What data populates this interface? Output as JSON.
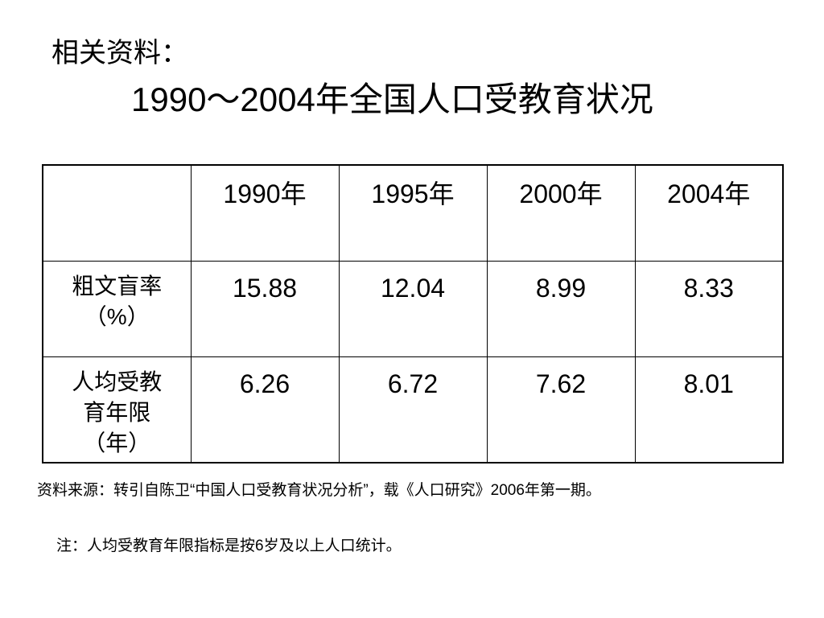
{
  "header": {
    "label": "相关资料：",
    "title": "1990～2004年全国人口受教育状况"
  },
  "table": {
    "corner": "",
    "columns": [
      "1990年",
      "1995年",
      "2000年",
      "2004年"
    ],
    "rows": [
      {
        "label_lines": [
          "粗文盲率",
          "（%）"
        ],
        "values": [
          "15.88",
          "12.04",
          "8.99",
          "8.33"
        ]
      },
      {
        "label_lines": [
          "人均受教",
          "育年限",
          "（年）"
        ],
        "values": [
          "6.26",
          "6.72",
          "7.62",
          "8.01"
        ]
      }
    ]
  },
  "footer": {
    "source": "资料来源：转引自陈卫“中国人口受教育状况分析”，载《人口研究》2006年第一期。",
    "note": "注：人均受教育年限指标是按6岁及以上人口统计。"
  }
}
